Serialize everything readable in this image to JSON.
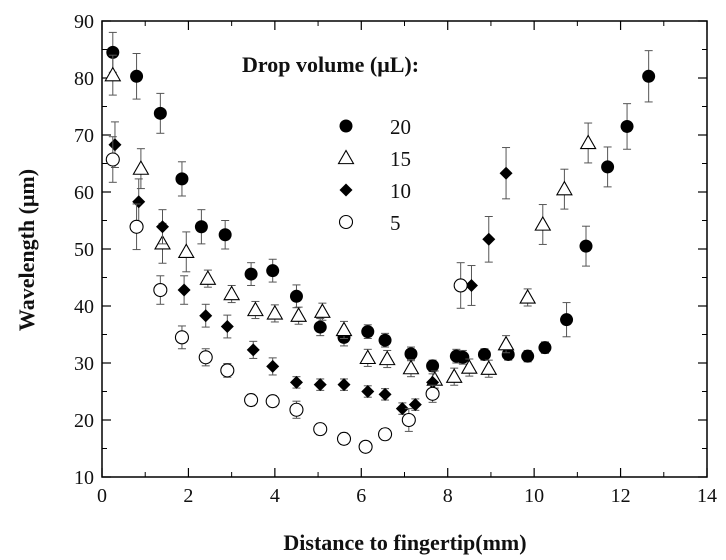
{
  "chart_data": {
    "type": "scatter",
    "title": "",
    "xlabel": "Distance to fingertip(mm)",
    "ylabel": "Wavelength (μm)",
    "xlim": [
      0,
      14
    ],
    "ylim": [
      10,
      90
    ],
    "x_ticks": [
      0,
      2,
      4,
      6,
      8,
      10,
      12,
      14
    ],
    "y_ticks": [
      10,
      20,
      30,
      40,
      50,
      60,
      70,
      80,
      90
    ],
    "grid": false,
    "error_bars": true,
    "legend": {
      "title": "Drop volume (μL):",
      "placement": "upper-center",
      "entries": [
        "20",
        "15",
        "10",
        "5"
      ]
    },
    "series": [
      {
        "name": "20",
        "marker": "filled-circle",
        "color": "#000000",
        "x": [
          0.25,
          0.8,
          1.35,
          1.85,
          2.3,
          2.85,
          3.45,
          3.95,
          4.5,
          5.05,
          5.6,
          6.15,
          6.55,
          7.15,
          7.65,
          8.2,
          8.35,
          8.85,
          9.4,
          9.85,
          10.25,
          10.75,
          11.2,
          11.7,
          12.15,
          12.65
        ],
        "y": [
          84.5,
          80.3,
          73.8,
          62.3,
          53.9,
          52.5,
          45.6,
          46.2,
          41.7,
          36.3,
          34.5,
          35.5,
          34.0,
          31.6,
          29.5,
          31.2,
          31.0,
          31.5,
          31.5,
          31.2,
          32.7,
          37.6,
          50.5,
          64.4,
          71.5,
          80.3
        ],
        "err": [
          3.5,
          4.0,
          3.5,
          3.0,
          3.0,
          2.5,
          2.0,
          2.0,
          2.0,
          1.5,
          1.5,
          1.2,
          1.2,
          1.2,
          1.0,
          1.2,
          1.2,
          1.0,
          1.0,
          1.0,
          1.0,
          3.0,
          3.5,
          3.5,
          4.0,
          4.5
        ]
      },
      {
        "name": "15",
        "marker": "open-triangle",
        "color": "#000000",
        "x": [
          0.25,
          0.9,
          1.4,
          1.95,
          2.45,
          3.0,
          3.55,
          4.0,
          4.55,
          5.1,
          5.6,
          6.15,
          6.6,
          7.15,
          7.7,
          8.15,
          8.5,
          8.95,
          9.35,
          9.85,
          10.2,
          10.7,
          11.25
        ],
        "y": [
          80.5,
          64.1,
          51.0,
          49.5,
          44.8,
          42.1,
          39.3,
          38.7,
          38.3,
          39.0,
          35.8,
          30.9,
          30.7,
          29.1,
          27.1,
          27.6,
          29.2,
          29.0,
          33.3,
          41.5,
          54.3,
          60.5,
          68.6
        ]
      },
      {
        "name": "10",
        "marker": "filled-diamond",
        "color": "#000000",
        "x": [
          0.3,
          0.85,
          1.4,
          1.9,
          2.4,
          2.9,
          3.5,
          3.95,
          4.5,
          5.05,
          5.6,
          6.15,
          6.55,
          6.95,
          7.25,
          7.65,
          8.55,
          8.95,
          9.35
        ],
        "y": [
          68.3,
          58.3,
          53.9,
          42.8,
          38.3,
          36.4,
          32.3,
          29.4,
          26.6,
          26.2,
          26.2,
          25.0,
          24.5,
          22.0,
          22.7,
          26.6,
          43.6,
          51.7,
          63.3
        ],
        "err": [
          4.0,
          4.0,
          3.0,
          2.5,
          2.0,
          2.0,
          1.5,
          1.5,
          1.0,
          1.0,
          1.0,
          1.0,
          1.0,
          1.0,
          1.0,
          1.5,
          3.5,
          4.0,
          4.5
        ]
      },
      {
        "name": "5",
        "marker": "open-circle",
        "color": "#000000",
        "x": [
          0.25,
          0.8,
          1.35,
          1.85,
          2.4,
          2.9,
          3.45,
          3.95,
          4.5,
          5.05,
          5.6,
          6.1,
          6.55,
          7.1,
          7.65,
          8.3
        ],
        "y": [
          65.7,
          53.9,
          42.8,
          34.5,
          31.0,
          28.7,
          23.5,
          23.3,
          21.8,
          18.4,
          16.7,
          15.3,
          17.5,
          20.0,
          24.6,
          43.6
        ],
        "err": [
          4.0,
          4.0,
          2.5,
          2.0,
          1.5,
          1.2,
          1.0,
          1.0,
          1.5,
          1.0,
          1.0,
          0.8,
          1.0,
          2.0,
          1.5,
          4.0
        ]
      }
    ]
  }
}
